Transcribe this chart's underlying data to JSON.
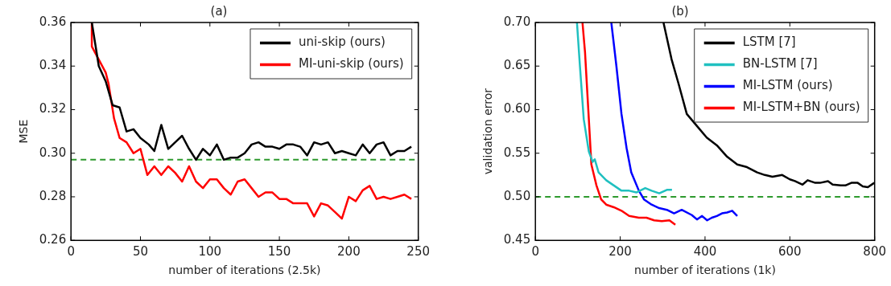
{
  "chart_data": [
    {
      "type": "line",
      "title": "(a)",
      "xlabel": "number of iterations (2.5k)",
      "ylabel": "MSE",
      "xlim": [
        0,
        250
      ],
      "xticks": [
        0,
        50,
        100,
        150,
        200,
        250
      ],
      "ylim": [
        0.26,
        0.36
      ],
      "yticks": [
        0.26,
        0.28,
        {
          "value": 0.3,
          "label": "0.30"
        },
        0.32,
        0.34,
        0.36
      ],
      "grid": false,
      "legend": "top right",
      "marker": "none",
      "line_style": "solid",
      "ref_lines": [
        {
          "axis": "y",
          "value": 0.297,
          "label": null,
          "color": "#2e9a2e",
          "line_style": "dashed"
        }
      ],
      "series": [
        {
          "name": "uni-skip (ours)",
          "color": "#000000",
          "x": [
            15,
            20,
            25,
            30,
            35,
            40,
            45,
            50,
            56,
            60,
            65,
            70,
            75,
            80,
            85,
            90,
            95,
            100,
            105,
            110,
            115,
            120,
            125,
            130,
            135,
            140,
            145,
            150,
            155,
            160,
            165,
            170,
            175,
            180,
            185,
            190,
            195,
            200,
            205,
            210,
            215,
            220,
            225,
            230,
            235,
            240,
            245
          ],
          "values": [
            0.36,
            0.34,
            0.333,
            0.322,
            0.321,
            0.31,
            0.311,
            0.307,
            0.304,
            0.301,
            0.313,
            0.302,
            0.305,
            0.308,
            0.302,
            0.297,
            0.302,
            0.299,
            0.304,
            0.297,
            0.298,
            0.298,
            0.3,
            0.304,
            0.305,
            0.303,
            0.303,
            0.302,
            0.304,
            0.304,
            0.303,
            0.299,
            0.305,
            0.304,
            0.305,
            0.3,
            0.301,
            0.3,
            0.299,
            0.304,
            0.3,
            0.304,
            0.305,
            0.299,
            0.301,
            0.301,
            0.303
          ]
        },
        {
          "name": "MI-uni-skip (ours)",
          "color": "#ff0000",
          "x": [
            15,
            15,
            20,
            25,
            27,
            31,
            35,
            40,
            45,
            50,
            55,
            60,
            65,
            70,
            75,
            80,
            85,
            90,
            95,
            100,
            105,
            110,
            115,
            120,
            125,
            130,
            135,
            140,
            145,
            150,
            155,
            160,
            165,
            170,
            175,
            180,
            185,
            190,
            195,
            200,
            205,
            210,
            215,
            220,
            225,
            230,
            235,
            240,
            245
          ],
          "values": [
            0.36,
            0.349,
            0.343,
            0.337,
            0.332,
            0.316,
            0.307,
            0.305,
            0.3,
            0.302,
            0.29,
            0.294,
            0.29,
            0.294,
            0.291,
            0.287,
            0.294,
            0.287,
            0.284,
            0.288,
            0.288,
            0.284,
            0.281,
            0.287,
            0.288,
            0.284,
            0.28,
            0.282,
            0.282,
            0.279,
            0.279,
            0.277,
            0.277,
            0.277,
            0.271,
            0.277,
            0.276,
            0.273,
            0.27,
            0.28,
            0.278,
            0.283,
            0.285,
            0.279,
            0.28,
            0.279,
            0.28,
            0.281,
            0.279
          ]
        }
      ]
    },
    {
      "type": "line",
      "title": "(b)",
      "xlabel": "number of iterations (1k)",
      "ylabel": "validation error",
      "xlim": [
        0,
        800
      ],
      "xticks": [
        0,
        200,
        400,
        600,
        800
      ],
      "ylim": [
        0.45,
        0.7
      ],
      "yticks": [
        0.45,
        {
          "value": 0.5,
          "label": "0.50"
        },
        0.55,
        {
          "value": 0.6,
          "label": "0.60"
        },
        0.65,
        {
          "value": 0.7,
          "label": "0.70"
        }
      ],
      "grid": false,
      "legend": "top right",
      "marker": "none",
      "line_style": "solid",
      "ref_lines": [
        {
          "axis": "y",
          "value": 0.5,
          "label": null,
          "color": "#2e9a2e",
          "line_style": "dashed"
        }
      ],
      "series": [
        {
          "name": "LSTM [7]",
          "color": "#000000",
          "x": [
            302,
            321,
            338,
            357,
            383,
            404,
            428,
            452,
            476,
            499,
            523,
            541,
            559,
            582,
            600,
            612,
            630,
            642,
            660,
            671,
            690,
            701,
            720,
            731,
            745,
            760,
            772,
            784,
            799
          ],
          "values": [
            0.7,
            0.658,
            0.629,
            0.595,
            0.58,
            0.568,
            0.559,
            0.546,
            0.537,
            0.534,
            0.528,
            0.525,
            0.523,
            0.525,
            0.52,
            0.518,
            0.514,
            0.519,
            0.516,
            0.516,
            0.518,
            0.514,
            0.513,
            0.513,
            0.516,
            0.516,
            0.512,
            0.511,
            0.516
          ]
        },
        {
          "name": "BN-LSTM [7]",
          "color": "#20c0c0",
          "x": [
            98,
            105,
            114,
            126,
            135,
            140,
            149,
            167,
            185,
            203,
            221,
            238,
            259,
            274,
            292,
            310,
            322
          ],
          "values": [
            0.7,
            0.65,
            0.589,
            0.552,
            0.54,
            0.543,
            0.528,
            0.519,
            0.513,
            0.507,
            0.507,
            0.505,
            0.51,
            0.507,
            0.504,
            0.508,
            0.508
          ]
        },
        {
          "name": "MI-LSTM (ours)",
          "color": "#0000ff",
          "x": [
            179,
            191,
            203,
            215,
            226,
            244,
            256,
            274,
            292,
            310,
            327,
            345,
            369,
            381,
            393,
            405,
            416,
            428,
            440,
            452,
            464,
            476
          ],
          "values": [
            0.7,
            0.65,
            0.595,
            0.556,
            0.528,
            0.507,
            0.497,
            0.491,
            0.487,
            0.485,
            0.481,
            0.485,
            0.479,
            0.474,
            0.478,
            0.473,
            0.476,
            0.478,
            0.481,
            0.482,
            0.484,
            0.478
          ]
        },
        {
          "name": "MI-LSTM+BN (ours)",
          "color": "#ff0000",
          "x": [
            111,
            117,
            126,
            132,
            144,
            155,
            167,
            185,
            203,
            221,
            244,
            262,
            280,
            298,
            316,
            330
          ],
          "values": [
            0.7,
            0.666,
            0.589,
            0.537,
            0.513,
            0.497,
            0.491,
            0.488,
            0.484,
            0.478,
            0.476,
            0.476,
            0.473,
            0.472,
            0.473,
            0.468
          ]
        }
      ]
    }
  ]
}
